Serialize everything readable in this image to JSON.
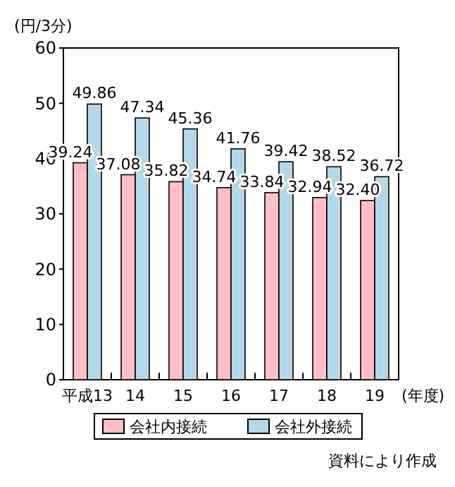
{
  "chart_data": {
    "type": "bar",
    "ylabel": "(円/3分)",
    "xlabel": "(年度)",
    "categories": [
      "平成13",
      "14",
      "15",
      "16",
      "17",
      "18",
      "19"
    ],
    "series": [
      {
        "name": "会社内接続",
        "color": "#ffbfc4",
        "values": [
          39.24,
          37.08,
          35.82,
          34.74,
          33.84,
          32.94,
          32.4
        ],
        "value_labels": [
          "39.24",
          "37.08",
          "35.82",
          "34.74",
          "33.84",
          "32.94",
          "32.40"
        ]
      },
      {
        "name": "会社外接続",
        "color": "#b4d8e8",
        "values": [
          49.86,
          47.34,
          45.36,
          41.76,
          39.42,
          38.52,
          36.72
        ],
        "value_labels": [
          "49.86",
          "47.34",
          "45.36",
          "41.76",
          "39.42",
          "38.52",
          "36.72"
        ]
      }
    ],
    "ylim": [
      0,
      60
    ],
    "yticks": [
      0,
      10,
      20,
      30,
      40,
      50,
      60
    ],
    "grid": false,
    "legend": "bottom",
    "annotations": [
      "資料により作成"
    ]
  }
}
